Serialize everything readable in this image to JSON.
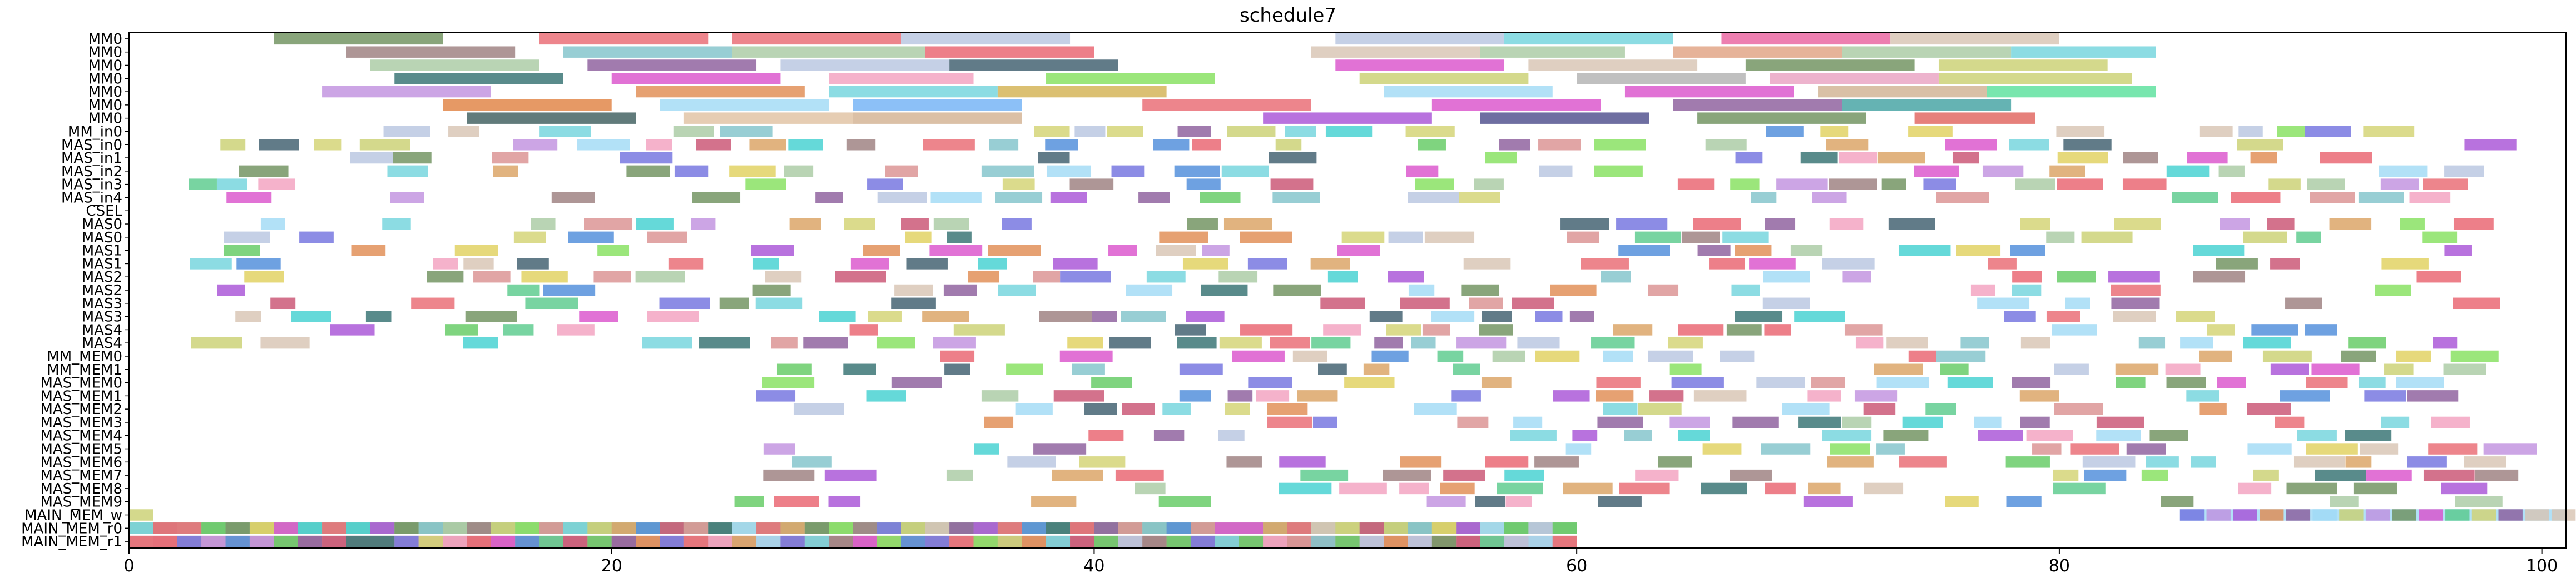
{
  "chart_data": {
    "type": "gantt",
    "title": "schedule7",
    "xlabel": "",
    "ylabel": "",
    "xlim": [
      0,
      101
    ],
    "x_ticks": [
      0,
      20,
      40,
      60,
      80,
      100
    ],
    "rows": [
      "MM0",
      "MM0",
      "MM0",
      "MM0",
      "MM0",
      "MM0",
      "MM0",
      "MM_in0",
      "MAS_in0",
      "MAS_in1",
      "MAS_in2",
      "MAS_in3",
      "MAS_in4",
      "CSEL",
      "MAS0",
      "MAS0",
      "MAS1",
      "MAS1",
      "MAS2",
      "MAS2",
      "MAS3",
      "MAS3",
      "MAS4",
      "MAS4",
      "MM_MEM0",
      "MM_MEM1",
      "MAS_MEM0",
      "MAS_MEM1",
      "MAS_MEM2",
      "MAS_MEM3",
      "MAS_MEM4",
      "MAS_MEM5",
      "MAS_MEM6",
      "MAS_MEM7",
      "MAS_MEM8",
      "MAS_MEM9",
      "MAIN_MEM_w",
      "MAIN_MEM_r0",
      "MAIN_MEM_r1"
    ],
    "palette": [
      "#6b8e5a",
      "#e8666f",
      "#b7c4e0",
      "#6fd3dc",
      "#d7c3b1",
      "#9a7c7c",
      "#7ec2c9",
      "#e85f6c",
      "#a7c9a1",
      "#2f6e6e",
      "#d94fcb",
      "#e08a4f",
      "#82e05a",
      "#c9d06f",
      "#8a5a9a",
      "#3a5a6a",
      "#f29fbe",
      "#4a8ad9",
      "#a64fd6",
      "#d2d26f",
      "#56c98a",
      "#d9a05f",
      "#6f6fdf",
      "#c84f6f",
      "#9fd9f5",
      "#5fc95f",
      "#e0d05a",
      "#bf8fdf",
      "#d98f8f",
      "#3fcfcf"
    ],
    "tasks": [
      {
        "row": 0,
        "start": 6.0,
        "end": 13.0,
        "color": "#6b8e5a"
      },
      {
        "row": 0,
        "start": 17.0,
        "end": 24.0,
        "color": "#e8666f"
      },
      {
        "row": 0,
        "start": 25.0,
        "end": 32.0,
        "color": "#e8666f"
      },
      {
        "row": 0,
        "start": 32.0,
        "end": 39.0,
        "color": "#b7c4e0"
      },
      {
        "row": 0,
        "start": 50.0,
        "end": 57.0,
        "color": "#b7c4e0"
      },
      {
        "row": 0,
        "start": 57.0,
        "end": 64.0,
        "color": "#6fd3dc"
      },
      {
        "row": 0,
        "start": 66.0,
        "end": 73.0,
        "color": "#e85f9c"
      },
      {
        "row": 0,
        "start": 73.0,
        "end": 80.0,
        "color": "#d7c3b1"
      },
      {
        "row": 1,
        "start": 9.0,
        "end": 16.0,
        "color": "#9a7c7c"
      },
      {
        "row": 1,
        "start": 18.0,
        "end": 25.0,
        "color": "#7ec2c9"
      },
      {
        "row": 1,
        "start": 25.0,
        "end": 33.0,
        "color": "#a7c9a1"
      },
      {
        "row": 1,
        "start": 33.0,
        "end": 40.0,
        "color": "#e85f6c"
      },
      {
        "row": 1,
        "start": 49.0,
        "end": 56.0,
        "color": "#d7c3b1"
      },
      {
        "row": 1,
        "start": 56.0,
        "end": 62.0,
        "color": "#a7c9a1"
      },
      {
        "row": 1,
        "start": 64.0,
        "end": 71.0,
        "color": "#e0a080"
      },
      {
        "row": 1,
        "start": 71.0,
        "end": 78.0,
        "color": "#a7c9a1"
      },
      {
        "row": 1,
        "start": 78.0,
        "end": 84.0,
        "color": "#6fd3dc"
      },
      {
        "row": 2,
        "start": 10.0,
        "end": 17.0,
        "color": "#a7c9a1"
      },
      {
        "row": 2,
        "start": 19.0,
        "end": 26.0,
        "color": "#8a5a9a"
      },
      {
        "row": 2,
        "start": 27.0,
        "end": 34.0,
        "color": "#b7c4e0"
      },
      {
        "row": 2,
        "start": 34.0,
        "end": 41.0,
        "color": "#3a5a6a"
      },
      {
        "row": 2,
        "start": 50.0,
        "end": 57.0,
        "color": "#d94fcb"
      },
      {
        "row": 2,
        "start": 58.0,
        "end": 65.0,
        "color": "#d7c3b1"
      },
      {
        "row": 2,
        "start": 67.0,
        "end": 74.0,
        "color": "#6b8e5a"
      },
      {
        "row": 2,
        "start": 75.0,
        "end": 82.0,
        "color": "#c9d06f"
      },
      {
        "row": 3,
        "start": 11.0,
        "end": 18.0,
        "color": "#2f6e6e"
      },
      {
        "row": 3,
        "start": 20.0,
        "end": 27.0,
        "color": "#d94fcb"
      },
      {
        "row": 3,
        "start": 29.0,
        "end": 35.0,
        "color": "#f29fbe"
      },
      {
        "row": 3,
        "start": 38.0,
        "end": 45.0,
        "color": "#82e05a"
      },
      {
        "row": 3,
        "start": 51.0,
        "end": 58.0,
        "color": "#c9d06f"
      },
      {
        "row": 3,
        "start": 60.0,
        "end": 67.0,
        "color": "#b0b0b0"
      },
      {
        "row": 3,
        "start": 68.0,
        "end": 75.0,
        "color": "#e8a0c0"
      },
      {
        "row": 3,
        "start": 75.0,
        "end": 83.0,
        "color": "#c9d06f"
      },
      {
        "row": 4,
        "start": 8.0,
        "end": 15.0,
        "color": "#bf8fdf"
      },
      {
        "row": 4,
        "start": 21.0,
        "end": 28.0,
        "color": "#e08a4f"
      },
      {
        "row": 4,
        "start": 29.0,
        "end": 36.0,
        "color": "#6fd3dc"
      },
      {
        "row": 4,
        "start": 36.0,
        "end": 43.0,
        "color": "#d2b04f"
      },
      {
        "row": 4,
        "start": 52.0,
        "end": 59.0,
        "color": "#9fd9f5"
      },
      {
        "row": 4,
        "start": 62.0,
        "end": 69.0,
        "color": "#d94fcb"
      },
      {
        "row": 4,
        "start": 70.0,
        "end": 77.0,
        "color": "#d0b090"
      },
      {
        "row": 4,
        "start": 77.0,
        "end": 84.0,
        "color": "#56e09a"
      },
      {
        "row": 5,
        "start": 13.0,
        "end": 20.0,
        "color": "#e0803f"
      },
      {
        "row": 5,
        "start": 22.0,
        "end": 29.0,
        "color": "#9fd9f5"
      },
      {
        "row": 5,
        "start": 30.0,
        "end": 37.0,
        "color": "#6fb0f5"
      },
      {
        "row": 5,
        "start": 42.0,
        "end": 49.0,
        "color": "#e8666f"
      },
      {
        "row": 5,
        "start": 54.0,
        "end": 61.0,
        "color": "#d94fcb"
      },
      {
        "row": 5,
        "start": 64.0,
        "end": 71.0,
        "color": "#8a5a9a"
      },
      {
        "row": 5,
        "start": 71.0,
        "end": 78.0,
        "color": "#3fa0a0"
      },
      {
        "row": 6,
        "start": 14.0,
        "end": 21.0,
        "color": "#3a5a5a"
      },
      {
        "row": 6,
        "start": 23.0,
        "end": 30.0,
        "color": "#e0c0a0"
      },
      {
        "row": 6,
        "start": 30.0,
        "end": 37.0,
        "color": "#d2b090"
      },
      {
        "row": 6,
        "start": 47.0,
        "end": 54.0,
        "color": "#a64fd6"
      },
      {
        "row": 6,
        "start": 56.0,
        "end": 63.0,
        "color": "#4a4a8a"
      },
      {
        "row": 6,
        "start": 65.0,
        "end": 72.0,
        "color": "#6b8e5a"
      },
      {
        "row": 6,
        "start": 74.0,
        "end": 79.0,
        "color": "#e0605a"
      },
      {
        "row": 38,
        "start": 0.0,
        "end": 60.0,
        "color": "#c9a0a0"
      },
      {
        "row": 37,
        "start": 0.0,
        "end": 60.0,
        "color": "#a0c0a0"
      },
      {
        "row": 36,
        "start": 0.0,
        "end": 1.0,
        "color": "#c9d06f"
      },
      {
        "row": 36,
        "start": 85.0,
        "end": 101.0,
        "color": "#9fd9f5"
      }
    ],
    "random_seed": 7
  }
}
